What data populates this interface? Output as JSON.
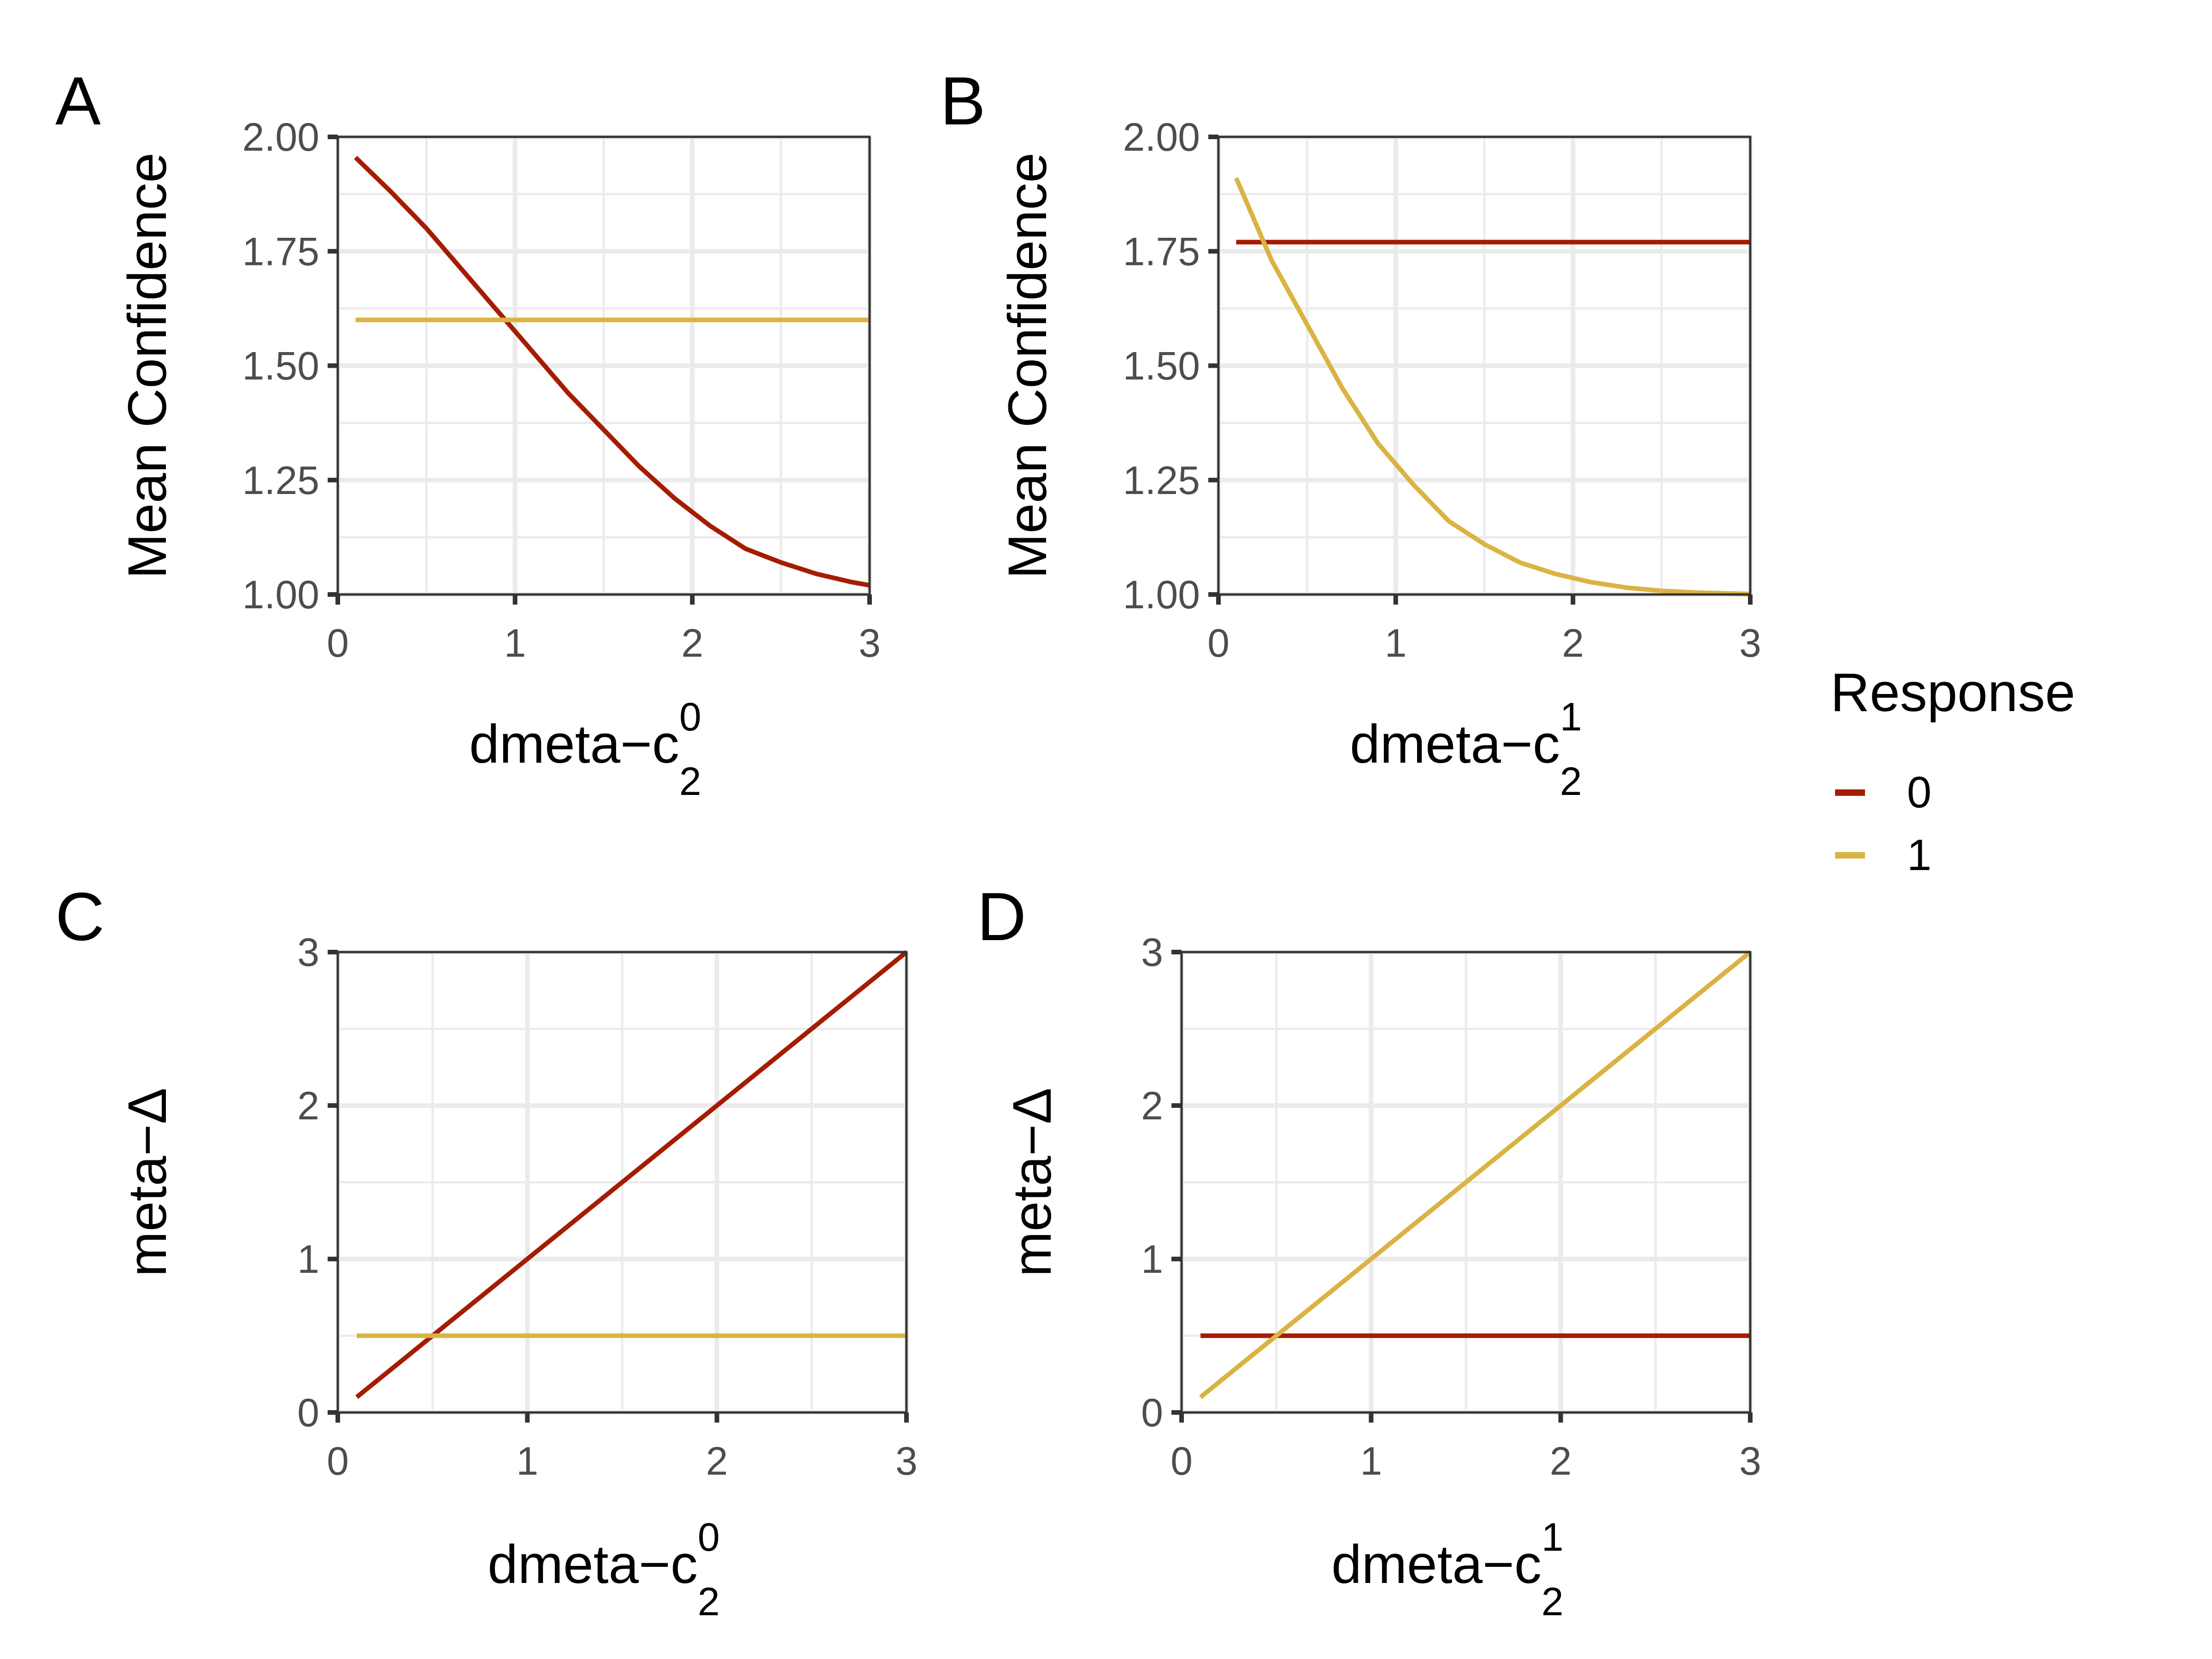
{
  "colors": {
    "response_0": "#A51C02",
    "response_1": "#DAB342",
    "grid": "#EBEBEB",
    "axis": "#333333"
  },
  "legend": {
    "title": "Response",
    "entries": [
      {
        "label": "0",
        "color": "#A51C02"
      },
      {
        "label": "1",
        "color": "#DAB342"
      }
    ],
    "placement": "right"
  },
  "chart_data": [
    {
      "panel": "A",
      "type": "line",
      "xlabel": "dmeta−c",
      "xlabel_sub": "2",
      "xlabel_sup": "0",
      "ylabel": "Mean Confidence",
      "xlim": [
        0,
        3
      ],
      "ylim": [
        1.0,
        2.0
      ],
      "xticks": [
        "0",
        "1",
        "2",
        "3"
      ],
      "yticks": [
        "1.00",
        "1.25",
        "1.50",
        "1.75",
        "2.00"
      ],
      "x": [
        0.1,
        0.3,
        0.5,
        0.7,
        0.9,
        1.1,
        1.3,
        1.5,
        1.7,
        1.9,
        2.1,
        2.3,
        2.5,
        2.7,
        2.9,
        3.0
      ],
      "series": [
        {
          "name": "0",
          "values": [
            1.955,
            1.88,
            1.8,
            1.71,
            1.62,
            1.53,
            1.44,
            1.36,
            1.28,
            1.21,
            1.15,
            1.1,
            1.07,
            1.045,
            1.027,
            1.02
          ]
        },
        {
          "name": "1",
          "values": [
            1.6,
            1.6,
            1.6,
            1.6,
            1.6,
            1.6,
            1.6,
            1.6,
            1.6,
            1.6,
            1.6,
            1.6,
            1.6,
            1.6,
            1.6,
            1.6
          ]
        }
      ]
    },
    {
      "panel": "B",
      "type": "line",
      "xlabel": "dmeta−c",
      "xlabel_sub": "2",
      "xlabel_sup": "1",
      "ylabel": "Mean Confidence",
      "xlim": [
        0,
        3
      ],
      "ylim": [
        1.0,
        2.0
      ],
      "xticks": [
        "0",
        "1",
        "2",
        "3"
      ],
      "yticks": [
        "1.00",
        "1.25",
        "1.50",
        "1.75",
        "2.00"
      ],
      "x": [
        0.1,
        0.3,
        0.5,
        0.7,
        0.9,
        1.1,
        1.3,
        1.5,
        1.7,
        1.9,
        2.1,
        2.3,
        2.5,
        2.7,
        2.9,
        3.0
      ],
      "series": [
        {
          "name": "0",
          "values": [
            1.77,
            1.77,
            1.77,
            1.77,
            1.77,
            1.77,
            1.77,
            1.77,
            1.77,
            1.77,
            1.77,
            1.77,
            1.77,
            1.77,
            1.77,
            1.77
          ]
        },
        {
          "name": "1",
          "values": [
            1.91,
            1.73,
            1.59,
            1.45,
            1.33,
            1.24,
            1.16,
            1.11,
            1.07,
            1.045,
            1.027,
            1.015,
            1.008,
            1.004,
            1.002,
            1.001
          ]
        }
      ]
    },
    {
      "panel": "C",
      "type": "line",
      "xlabel": "dmeta−c",
      "xlabel_sub": "2",
      "xlabel_sup": "0",
      "ylabel": "meta−Δ",
      "xlim": [
        0,
        3
      ],
      "ylim": [
        0,
        3
      ],
      "xticks": [
        "0",
        "1",
        "2",
        "3"
      ],
      "yticks": [
        "0",
        "1",
        "2",
        "3"
      ],
      "x": [
        0.1,
        0.5,
        1.0,
        1.5,
        2.0,
        2.5,
        3.0
      ],
      "series": [
        {
          "name": "0",
          "values": [
            0.1,
            0.5,
            1.0,
            1.5,
            2.0,
            2.5,
            3.0
          ]
        },
        {
          "name": "1",
          "values": [
            0.5,
            0.5,
            0.5,
            0.5,
            0.5,
            0.5,
            0.5
          ]
        }
      ]
    },
    {
      "panel": "D",
      "type": "line",
      "xlabel": "dmeta−c",
      "xlabel_sub": "2",
      "xlabel_sup": "1",
      "ylabel": "meta−Δ",
      "xlim": [
        0,
        3
      ],
      "ylim": [
        0,
        3
      ],
      "xticks": [
        "0",
        "1",
        "2",
        "3"
      ],
      "yticks": [
        "0",
        "1",
        "2",
        "3"
      ],
      "x": [
        0.1,
        0.5,
        1.0,
        1.5,
        2.0,
        2.5,
        3.0
      ],
      "series": [
        {
          "name": "0",
          "values": [
            0.5,
            0.5,
            0.5,
            0.5,
            0.5,
            0.5,
            0.5
          ]
        },
        {
          "name": "1",
          "values": [
            0.1,
            0.5,
            1.0,
            1.5,
            2.0,
            2.5,
            3.0
          ]
        }
      ]
    }
  ]
}
